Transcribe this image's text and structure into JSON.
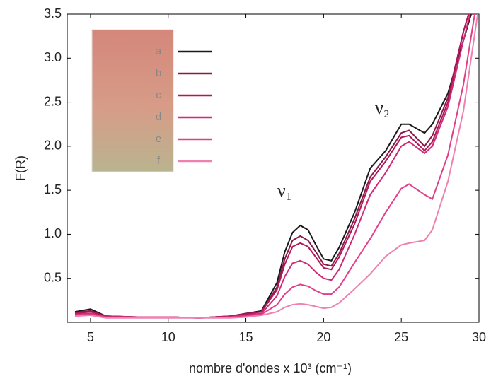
{
  "chart_data": {
    "type": "line",
    "x_label": "nombre d'ondes x 10³ (cm⁻¹)",
    "y_label": "F(R)",
    "annotations": [
      "ν₁",
      "ν₂"
    ],
    "x": [
      4,
      5,
      6,
      8,
      10,
      12,
      14,
      15,
      16,
      17,
      17.5,
      18,
      18.5,
      19,
      19.5,
      20,
      20.5,
      21,
      22,
      23,
      24,
      25,
      25.5,
      26.5,
      27,
      28,
      29,
      30
    ],
    "series": [
      {
        "name": "a",
        "color": "#1a1a1a",
        "values": [
          0.12,
          0.15,
          0.07,
          0.06,
          0.06,
          0.05,
          0.07,
          0.1,
          0.13,
          0.45,
          0.8,
          1.02,
          1.1,
          1.05,
          0.88,
          0.72,
          0.7,
          0.85,
          1.25,
          1.75,
          1.95,
          2.25,
          2.25,
          2.15,
          2.25,
          2.6,
          3.2,
          3.8
        ]
      },
      {
        "name": "b",
        "color": "#8b1a4a",
        "values": [
          0.11,
          0.13,
          0.07,
          0.06,
          0.06,
          0.05,
          0.07,
          0.1,
          0.12,
          0.4,
          0.72,
          0.93,
          0.98,
          0.93,
          0.8,
          0.66,
          0.64,
          0.78,
          1.18,
          1.65,
          1.88,
          2.15,
          2.18,
          2.0,
          2.12,
          2.55,
          3.3,
          3.9
        ]
      },
      {
        "name": "c",
        "color": "#b0185a",
        "values": [
          0.1,
          0.12,
          0.07,
          0.06,
          0.06,
          0.05,
          0.07,
          0.09,
          0.12,
          0.37,
          0.66,
          0.86,
          0.9,
          0.86,
          0.74,
          0.62,
          0.6,
          0.74,
          1.12,
          1.6,
          1.83,
          2.1,
          2.12,
          1.95,
          2.05,
          2.5,
          3.3,
          3.9
        ]
      },
      {
        "name": "d",
        "color": "#d02a78",
        "values": [
          0.09,
          0.1,
          0.06,
          0.06,
          0.06,
          0.05,
          0.06,
          0.08,
          0.1,
          0.3,
          0.52,
          0.67,
          0.7,
          0.66,
          0.57,
          0.5,
          0.48,
          0.6,
          1.0,
          1.45,
          1.7,
          2.0,
          2.05,
          1.92,
          2.0,
          2.45,
          3.2,
          3.9
        ]
      },
      {
        "name": "e",
        "color": "#e0408a",
        "values": [
          0.08,
          0.09,
          0.06,
          0.06,
          0.06,
          0.05,
          0.06,
          0.07,
          0.09,
          0.2,
          0.32,
          0.4,
          0.43,
          0.41,
          0.36,
          0.32,
          0.32,
          0.4,
          0.68,
          0.95,
          1.25,
          1.52,
          1.57,
          1.45,
          1.4,
          1.9,
          2.7,
          3.8
        ]
      },
      {
        "name": "f",
        "color": "#f080b0",
        "values": [
          0.07,
          0.08,
          0.05,
          0.05,
          0.05,
          0.05,
          0.05,
          0.06,
          0.08,
          0.12,
          0.17,
          0.2,
          0.21,
          0.2,
          0.18,
          0.16,
          0.17,
          0.22,
          0.38,
          0.55,
          0.75,
          0.88,
          0.9,
          0.93,
          1.05,
          1.6,
          2.4,
          3.6
        ]
      }
    ],
    "xlim": [
      3.5,
      30
    ],
    "xticks": [
      5,
      10,
      15,
      20,
      25,
      30
    ],
    "ylim": [
      0,
      3.5
    ],
    "yticks": [
      0.5,
      {
        "value": 1,
        "label": "1.0"
      },
      1.5,
      {
        "value": 2,
        "label": "2.0"
      },
      2.5,
      {
        "value": 3,
        "label": "3.0"
      },
      3.5
    ],
    "grid": false
  }
}
